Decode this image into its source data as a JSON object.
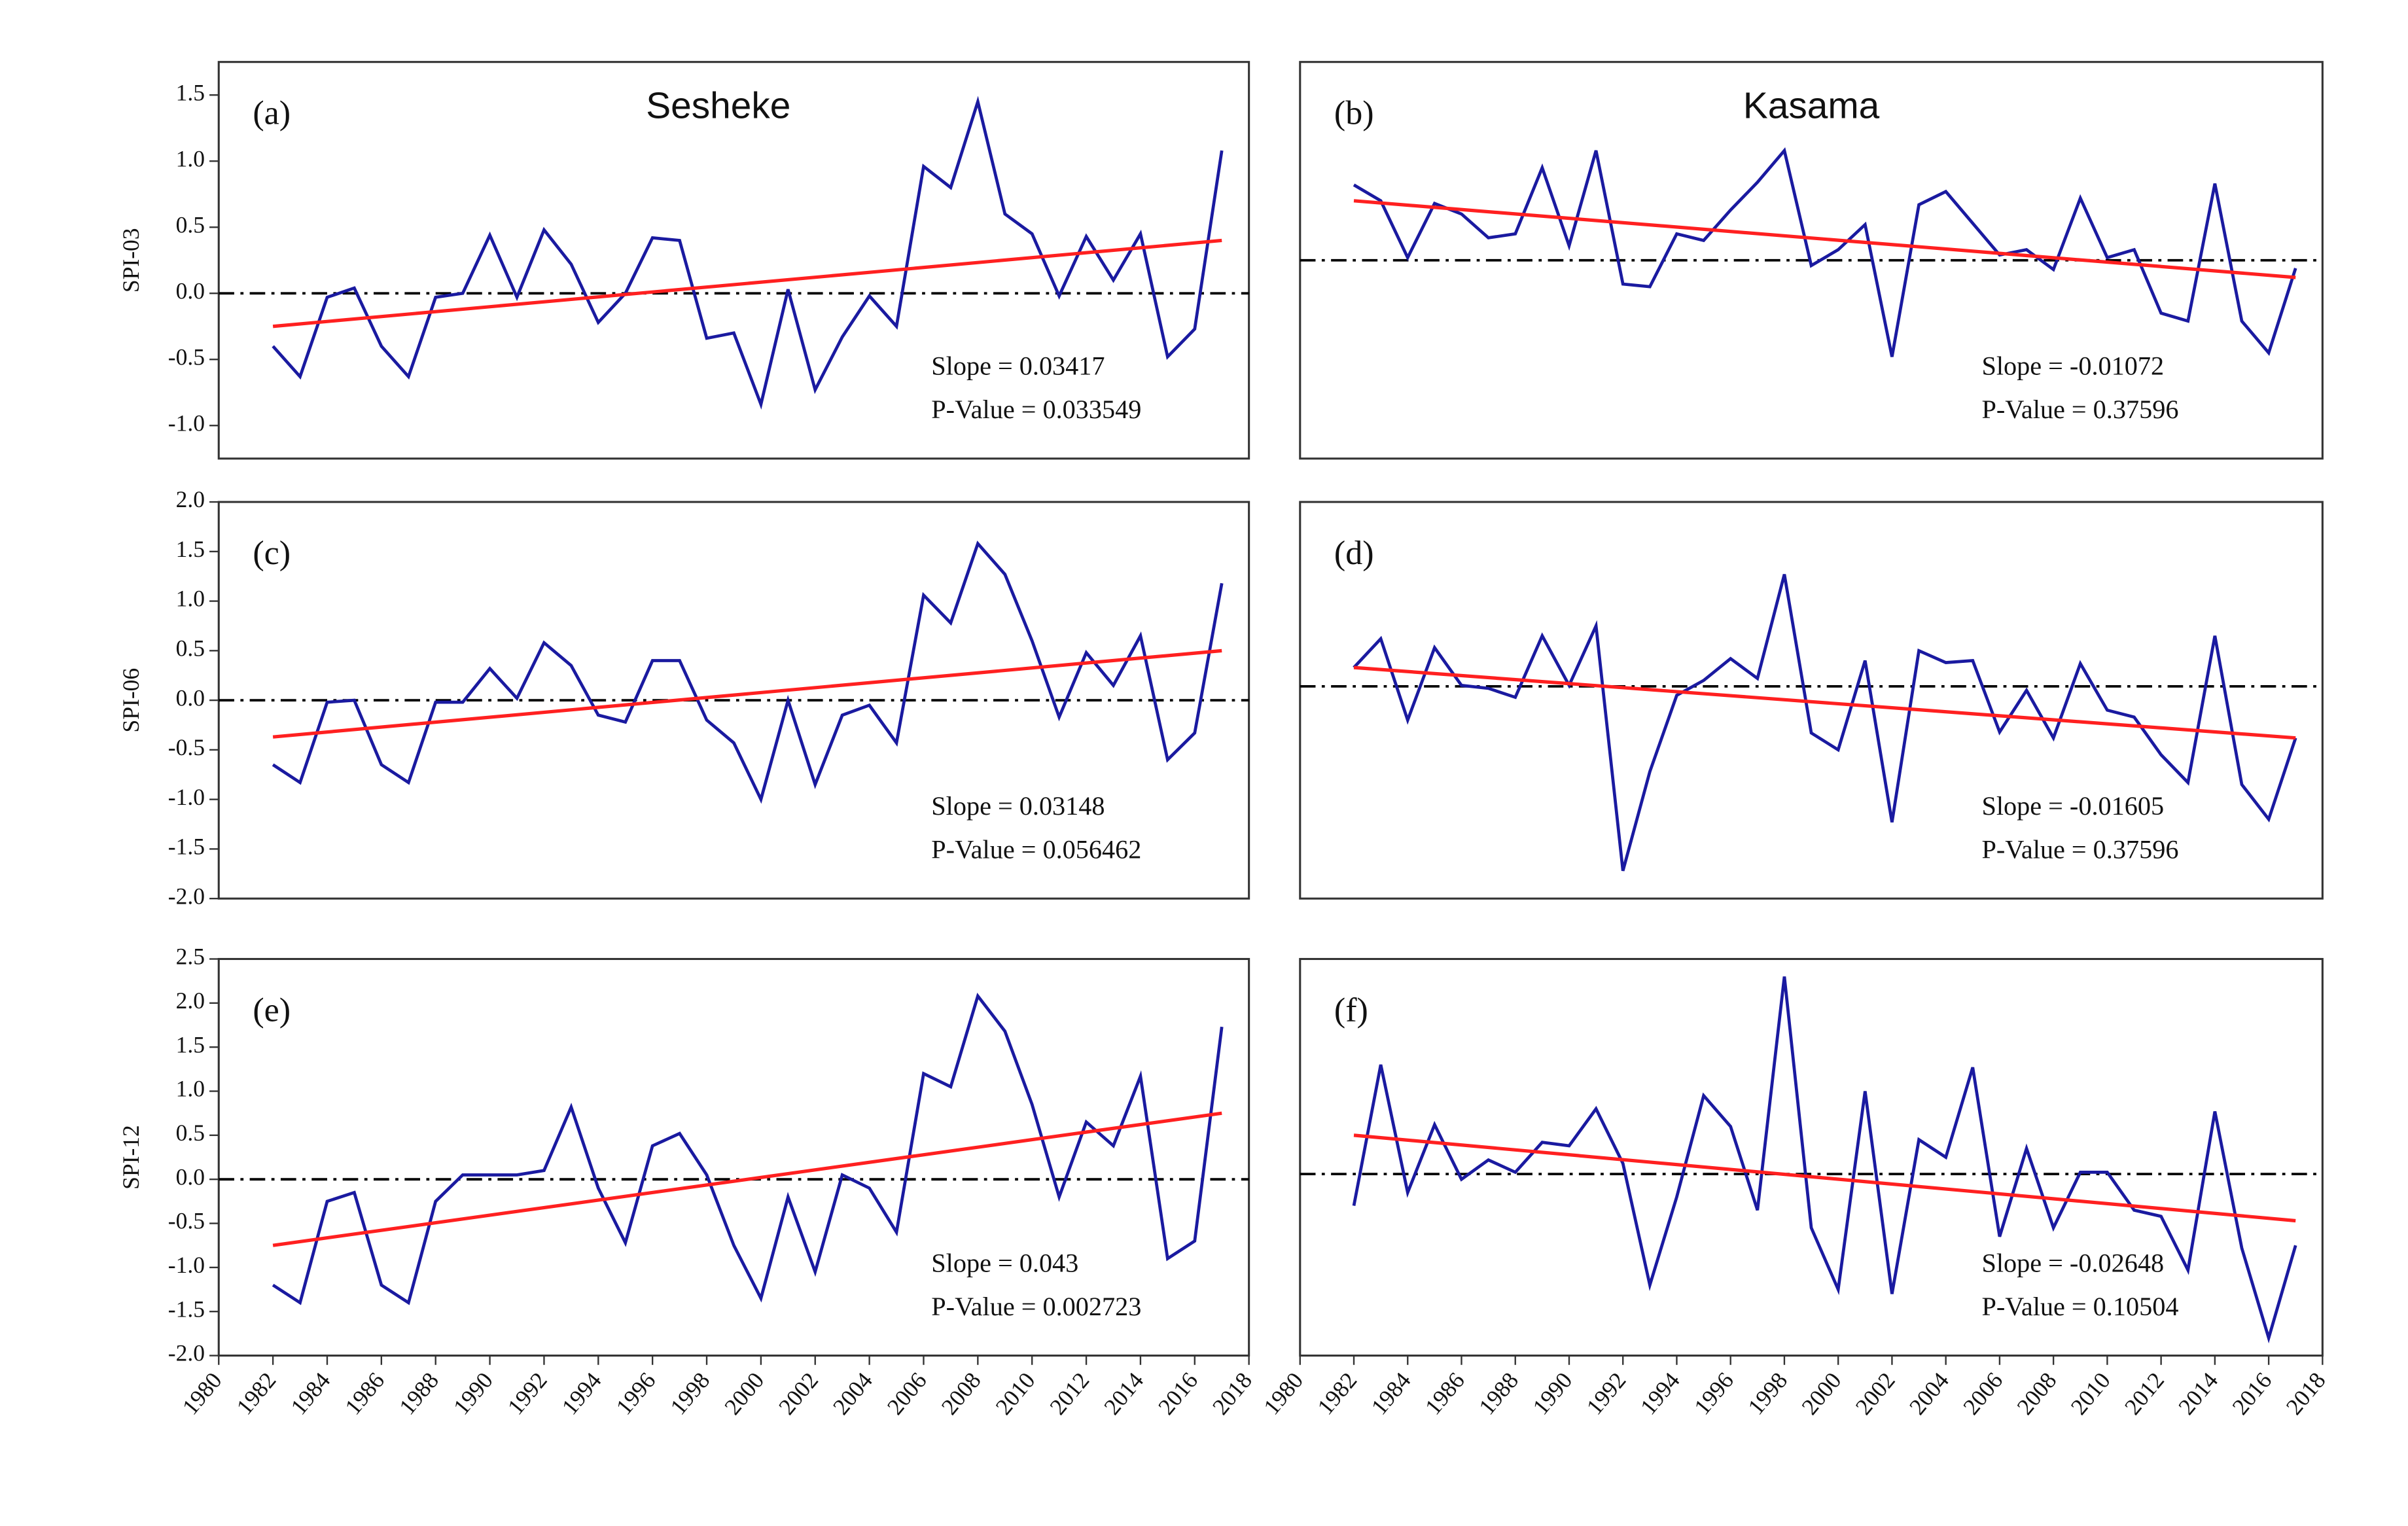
{
  "chart_data": [
    {
      "type": "line",
      "panel_label": "(a)",
      "title": "Sesheke",
      "ylabel": "SPI-03",
      "xlim": [
        1980,
        2018
      ],
      "ylim": [
        -1.25,
        1.75
      ],
      "yticks": [
        {
          "value": -1,
          "label": "-1.0"
        },
        -0.5,
        {
          "value": 0,
          "label": "0.0"
        },
        0.5,
        {
          "value": 1,
          "label": "1.0"
        },
        1.5
      ],
      "x": [
        1982,
        1983,
        1984,
        1985,
        1986,
        1987,
        1988,
        1989,
        1990,
        1991,
        1992,
        1993,
        1994,
        1995,
        1996,
        1997,
        1998,
        1999,
        2000,
        2001,
        2002,
        2003,
        2004,
        2005,
        2006,
        2007,
        2008,
        2009,
        2010,
        2011,
        2012,
        2013,
        2014,
        2015,
        2016,
        2017
      ],
      "series": [
        {
          "color": "#1a1aa0",
          "values": [
            -0.4,
            -0.63,
            -0.03,
            0.04,
            -0.4,
            -0.63,
            -0.03,
            0.0,
            0.44,
            -0.03,
            0.48,
            0.22,
            -0.22,
            0.0,
            0.42,
            0.4,
            -0.34,
            -0.3,
            -0.84,
            0.03,
            -0.73,
            -0.33,
            -0.02,
            -0.25,
            0.96,
            0.8,
            1.45,
            0.6,
            0.45,
            -0.02,
            0.43,
            0.1,
            0.45,
            -0.48,
            -0.27,
            1.08
          ]
        }
      ],
      "trend": {
        "color": "#ff2020",
        "x": [
          1982,
          2017
        ],
        "values": [
          -0.25,
          0.4
        ]
      },
      "reference": {
        "color": "#000000",
        "value": 0
      },
      "annotations": {
        "slope": "Slope = 0.03417",
        "p_value": "P-Value = 0.033549"
      }
    },
    {
      "type": "line",
      "panel_label": "(b)",
      "title": "Kasama",
      "xlim": [
        1980,
        2018
      ],
      "ylim": [
        -1.25,
        1.75
      ],
      "x": [
        1982,
        1983,
        1984,
        1985,
        1986,
        1987,
        1988,
        1989,
        1990,
        1991,
        1992,
        1993,
        1994,
        1995,
        1996,
        1997,
        1998,
        1999,
        2000,
        2001,
        2002,
        2003,
        2004,
        2005,
        2006,
        2007,
        2008,
        2009,
        2010,
        2011,
        2012,
        2013,
        2014,
        2015,
        2016,
        2017
      ],
      "series": [
        {
          "color": "#1a1aa0",
          "values": [
            0.82,
            0.7,
            0.27,
            0.68,
            0.6,
            0.42,
            0.45,
            0.95,
            0.36,
            1.08,
            0.07,
            0.05,
            0.45,
            0.4,
            0.63,
            0.84,
            1.08,
            0.21,
            0.33,
            0.52,
            -0.48,
            0.67,
            0.77,
            0.53,
            0.29,
            0.33,
            0.18,
            0.72,
            0.27,
            0.33,
            -0.15,
            -0.21,
            0.83,
            -0.21,
            -0.45,
            0.19
          ]
        }
      ],
      "trend": {
        "color": "#ff2020",
        "x": [
          1982,
          2017
        ],
        "values": [
          0.7,
          0.12
        ]
      },
      "reference": {
        "color": "#000000",
        "value": 0.25
      },
      "annotations": {
        "slope": "Slope = -0.01072",
        "p_value": "P-Value = 0.37596"
      }
    },
    {
      "type": "line",
      "panel_label": "(c)",
      "ylabel": "SPI-06",
      "xlim": [
        1980,
        2018
      ],
      "ylim": [
        -2,
        2
      ],
      "yticks": [
        {
          "value": -2,
          "label": "-2.0"
        },
        -1.5,
        {
          "value": -1,
          "label": "-1.0"
        },
        -0.5,
        {
          "value": 0,
          "label": "0.0"
        },
        0.5,
        {
          "value": 1,
          "label": "1.0"
        },
        1.5,
        {
          "value": 2,
          "label": "2.0"
        }
      ],
      "x": [
        1982,
        1983,
        1984,
        1985,
        1986,
        1987,
        1988,
        1989,
        1990,
        1991,
        1992,
        1993,
        1994,
        1995,
        1996,
        1997,
        1998,
        1999,
        2000,
        2001,
        2002,
        2003,
        2004,
        2005,
        2006,
        2007,
        2008,
        2009,
        2010,
        2011,
        2012,
        2013,
        2014,
        2015,
        2016,
        2017
      ],
      "series": [
        {
          "color": "#1a1aa0",
          "values": [
            -0.65,
            -0.83,
            -0.02,
            0.0,
            -0.65,
            -0.83,
            -0.02,
            -0.02,
            0.32,
            0.02,
            0.58,
            0.35,
            -0.15,
            -0.22,
            0.4,
            0.4,
            -0.2,
            -0.43,
            -1.0,
            0.0,
            -0.85,
            -0.15,
            -0.05,
            -0.43,
            1.06,
            0.78,
            1.58,
            1.27,
            0.6,
            -0.17,
            0.48,
            0.15,
            0.65,
            -0.6,
            -0.33,
            1.18
          ]
        }
      ],
      "trend": {
        "color": "#ff2020",
        "x": [
          1982,
          2017
        ],
        "values": [
          -0.37,
          0.5
        ]
      },
      "reference": {
        "color": "#000000",
        "value": 0
      },
      "annotations": {
        "slope": "Slope = 0.03148",
        "p_value": "P-Value = 0.056462"
      }
    },
    {
      "type": "line",
      "panel_label": "(d)",
      "xlim": [
        1980,
        2018
      ],
      "ylim": [
        -2,
        2
      ],
      "x": [
        1982,
        1983,
        1984,
        1985,
        1986,
        1987,
        1988,
        1989,
        1990,
        1991,
        1992,
        1993,
        1994,
        1995,
        1996,
        1997,
        1998,
        1999,
        2000,
        2001,
        2002,
        2003,
        2004,
        2005,
        2006,
        2007,
        2008,
        2009,
        2010,
        2011,
        2012,
        2013,
        2014,
        2015,
        2016,
        2017
      ],
      "series": [
        {
          "color": "#1a1aa0",
          "values": [
            0.33,
            0.62,
            -0.2,
            0.53,
            0.15,
            0.12,
            0.03,
            0.65,
            0.15,
            0.75,
            -1.72,
            -0.72,
            0.05,
            0.2,
            0.42,
            0.22,
            1.27,
            -0.33,
            -0.5,
            0.4,
            -1.23,
            0.5,
            0.38,
            0.4,
            -0.32,
            0.1,
            -0.38,
            0.37,
            -0.1,
            -0.17,
            -0.55,
            -0.83,
            0.65,
            -0.85,
            -1.2,
            -0.38
          ]
        }
      ],
      "trend": {
        "color": "#ff2020",
        "x": [
          1982,
          2017
        ],
        "values": [
          0.33,
          -0.38
        ]
      },
      "reference": {
        "color": "#000000",
        "value": 0.14
      },
      "annotations": {
        "slope": "Slope = -0.01605",
        "p_value": "P-Value = 0.37596"
      }
    },
    {
      "type": "line",
      "panel_label": "(e)",
      "ylabel": "SPI-12",
      "xlim": [
        1980,
        2018
      ],
      "ylim": [
        -2,
        2.5
      ],
      "yticks": [
        {
          "value": -2,
          "label": "-2.0"
        },
        -1.5,
        {
          "value": -1,
          "label": "-1.0"
        },
        -0.5,
        {
          "value": 0,
          "label": "0.0"
        },
        0.5,
        {
          "value": 1,
          "label": "1.0"
        },
        1.5,
        {
          "value": 2,
          "label": "2.0"
        },
        2.5
      ],
      "xticks": [
        1980,
        1982,
        1984,
        1986,
        1988,
        1990,
        1992,
        1994,
        1996,
        1998,
        2000,
        2002,
        2004,
        2006,
        2008,
        2010,
        2012,
        2014,
        2016,
        2018
      ],
      "x": [
        1982,
        1983,
        1984,
        1985,
        1986,
        1987,
        1988,
        1989,
        1990,
        1991,
        1992,
        1993,
        1994,
        1995,
        1996,
        1997,
        1998,
        1999,
        2000,
        2001,
        2002,
        2003,
        2004,
        2005,
        2006,
        2007,
        2008,
        2009,
        2010,
        2011,
        2012,
        2013,
        2014,
        2015,
        2016,
        2017
      ],
      "series": [
        {
          "color": "#1a1aa0",
          "values": [
            -1.2,
            -1.4,
            -0.25,
            -0.15,
            -1.2,
            -1.4,
            -0.25,
            0.05,
            0.05,
            0.05,
            0.1,
            0.82,
            -0.1,
            -0.72,
            0.38,
            0.52,
            0.05,
            -0.75,
            -1.35,
            -0.2,
            -1.05,
            0.05,
            -0.1,
            -0.6,
            1.2,
            1.05,
            2.08,
            1.68,
            0.85,
            -0.2,
            0.65,
            0.38,
            1.17,
            -0.9,
            -0.7,
            1.73
          ]
        }
      ],
      "trend": {
        "color": "#ff2020",
        "x": [
          1982,
          2017
        ],
        "values": [
          -0.75,
          0.75
        ]
      },
      "reference": {
        "color": "#000000",
        "value": 0
      },
      "annotations": {
        "slope": "Slope = 0.043",
        "p_value": "P-Value = 0.002723"
      }
    },
    {
      "type": "line",
      "panel_label": "(f)",
      "xlim": [
        1980,
        2018
      ],
      "ylim": [
        -2,
        2.5
      ],
      "xticks": [
        1980,
        1982,
        1984,
        1986,
        1988,
        1990,
        1992,
        1994,
        1996,
        1998,
        2000,
        2002,
        2004,
        2006,
        2008,
        2010,
        2012,
        2014,
        2016,
        2018
      ],
      "x": [
        1982,
        1983,
        1984,
        1985,
        1986,
        1987,
        1988,
        1989,
        1990,
        1991,
        1992,
        1993,
        1994,
        1995,
        1996,
        1997,
        1998,
        1999,
        2000,
        2001,
        2002,
        2003,
        2004,
        2005,
        2006,
        2007,
        2008,
        2009,
        2010,
        2011,
        2012,
        2013,
        2014,
        2015,
        2016,
        2017
      ],
      "series": [
        {
          "color": "#1a1aa0",
          "values": [
            -0.3,
            1.3,
            -0.15,
            0.62,
            0.0,
            0.22,
            0.08,
            0.42,
            0.38,
            0.8,
            0.18,
            -1.2,
            -0.2,
            0.95,
            0.6,
            -0.35,
            2.3,
            -0.55,
            -1.25,
            1.0,
            -1.3,
            0.45,
            0.25,
            1.27,
            -0.65,
            0.35,
            -0.55,
            0.08,
            0.08,
            -0.35,
            -0.42,
            -1.03,
            0.77,
            -0.78,
            -1.8,
            -0.75
          ]
        }
      ],
      "trend": {
        "color": "#ff2020",
        "x": [
          1982,
          2017
        ],
        "values": [
          0.5,
          -0.47
        ]
      },
      "reference": {
        "color": "#000000",
        "value": 0.06
      },
      "annotations": {
        "slope": "Slope = -0.02648",
        "p_value": "P-Value = 0.10504"
      }
    }
  ]
}
